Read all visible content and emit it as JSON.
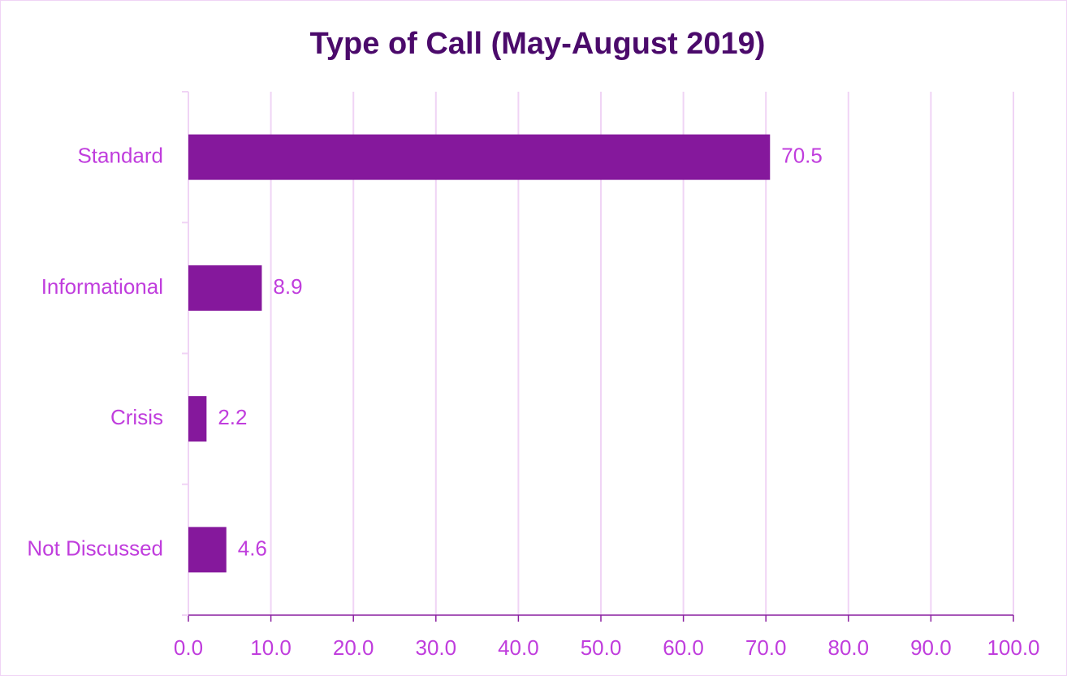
{
  "chart_data": {
    "type": "bar",
    "orientation": "horizontal",
    "title": "Type of Call (May-August 2019)",
    "categories": [
      "Standard",
      "Informational",
      "Crisis",
      "Not Discussed"
    ],
    "values": [
      70.5,
      8.9,
      2.2,
      4.6
    ],
    "color": "#85189c",
    "xlim": [
      0,
      100
    ],
    "xticks": [
      {
        "value": 0,
        "label": "0.0"
      },
      {
        "value": 10,
        "label": "10.0"
      },
      {
        "value": 20,
        "label": "20.0"
      },
      {
        "value": 30,
        "label": "30.0"
      },
      {
        "value": 40,
        "label": "40.0"
      },
      {
        "value": 50,
        "label": "50.0"
      },
      {
        "value": 60,
        "label": "60.0"
      },
      {
        "value": 70,
        "label": "70.0"
      },
      {
        "value": 80,
        "label": "80.0"
      },
      {
        "value": 90,
        "label": "90.0"
      },
      {
        "value": 100,
        "label": "100.0"
      }
    ],
    "grid": true
  }
}
